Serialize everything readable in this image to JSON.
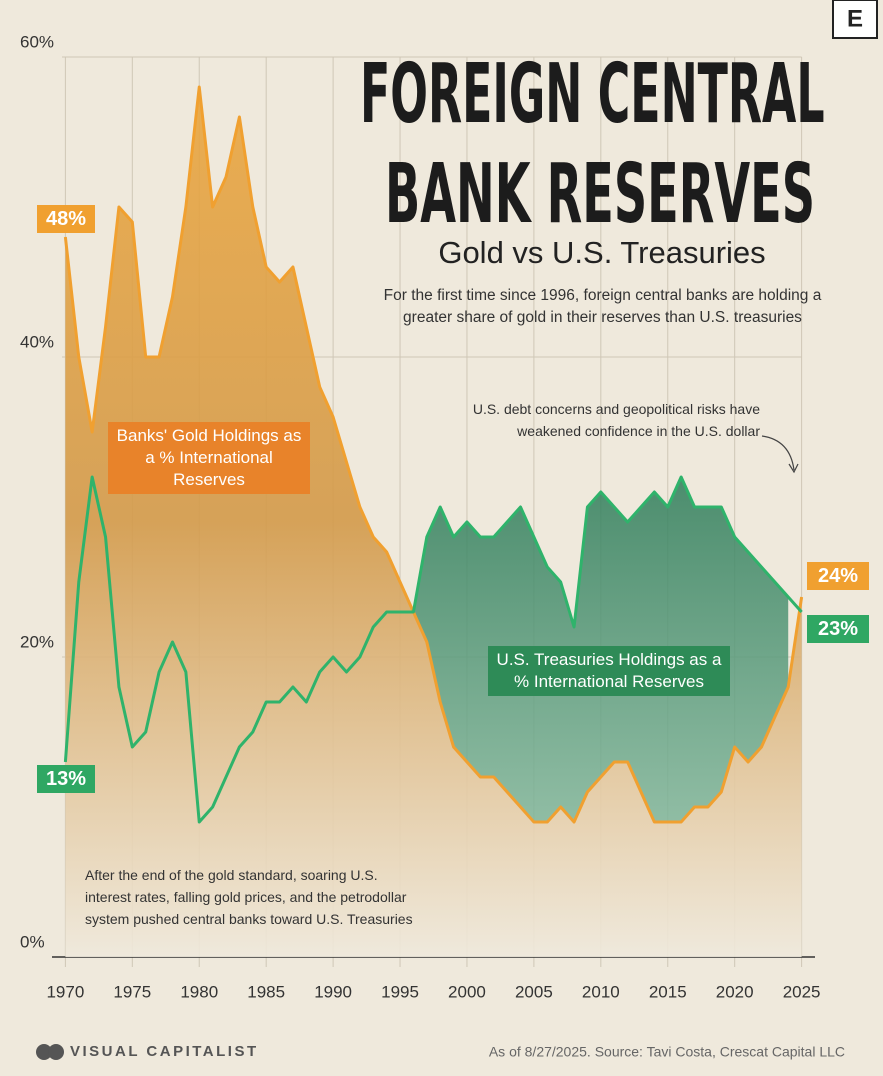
{
  "chart_data": {
    "type": "line",
    "title": "FOREIGN CENTRAL BANK RESERVES",
    "subtitle": "Gold vs U.S. Treasuries",
    "description": "For the first time since 1996, foreign central banks are holding a greater share of gold in their reserves than U.S. treasuries",
    "annotations": [
      "U.S. debt concerns and geopolitical risks have weakened confidence in the U.S. dollar",
      "After the end of the gold standard, soaring U.S. interest rates, falling gold prices, and the petrodollar system pushed central banks toward U.S. Treasuries"
    ],
    "x": [
      1970,
      1971,
      1972,
      1973,
      1974,
      1975,
      1976,
      1977,
      1978,
      1979,
      1980,
      1981,
      1982,
      1983,
      1984,
      1985,
      1986,
      1987,
      1988,
      1989,
      1990,
      1991,
      1992,
      1993,
      1994,
      1995,
      1996,
      1997,
      1998,
      1999,
      2000,
      2001,
      2002,
      2003,
      2004,
      2005,
      2006,
      2007,
      2008,
      2009,
      2010,
      2011,
      2012,
      2013,
      2014,
      2015,
      2016,
      2017,
      2018,
      2019,
      2020,
      2021,
      2022,
      2023,
      2024,
      2025
    ],
    "series": [
      {
        "name": "Banks' Gold Holdings as a % International Reserves",
        "color": "#f0a030",
        "start_label": "48%",
        "end_label": "24%",
        "values": [
          48,
          40,
          35,
          42,
          50,
          49,
          40,
          40,
          44,
          50,
          58,
          50,
          52,
          56,
          50,
          46,
          45,
          46,
          42,
          38,
          36,
          33,
          30,
          28,
          27,
          25,
          23,
          21,
          17,
          14,
          13,
          12,
          12,
          11,
          10,
          9,
          9,
          10,
          9,
          11,
          12,
          13,
          13,
          11,
          9,
          9,
          9,
          10,
          10,
          11,
          14,
          13,
          14,
          16,
          18,
          24
        ]
      },
      {
        "name": "U.S. Treasuries Holdings as a % International Reserves",
        "color": "#2fb36b",
        "start_label": "13%",
        "end_label": "23%",
        "values": [
          13,
          25,
          32,
          28,
          18,
          14,
          15,
          19,
          21,
          19,
          9,
          10,
          12,
          14,
          15,
          17,
          17,
          18,
          17,
          19,
          20,
          19,
          20,
          22,
          23,
          23,
          23,
          28,
          30,
          28,
          29,
          28,
          28,
          29,
          30,
          28,
          26,
          25,
          22,
          30,
          31,
          30,
          29,
          30,
          31,
          30,
          32,
          30,
          30,
          30,
          28,
          27,
          26,
          25,
          24,
          23
        ]
      }
    ],
    "xlim": [
      1969,
      2026
    ],
    "xticks": [
      1970,
      1975,
      1980,
      1985,
      1990,
      1995,
      2000,
      2005,
      2010,
      2015,
      2020,
      2025
    ],
    "ylim": [
      0,
      60
    ],
    "yticks": [
      {
        "value": 0,
        "label": "0%"
      },
      {
        "value": 20,
        "label": "20%"
      },
      {
        "value": 40,
        "label": "40%"
      },
      {
        "value": 60,
        "label": "60%"
      }
    ],
    "grid": true,
    "logo": "E",
    "brand": "VISUAL CAPITALIST",
    "source": "As of 8/27/2025. Source: Tavi Costa, Crescat Capital LLC"
  }
}
